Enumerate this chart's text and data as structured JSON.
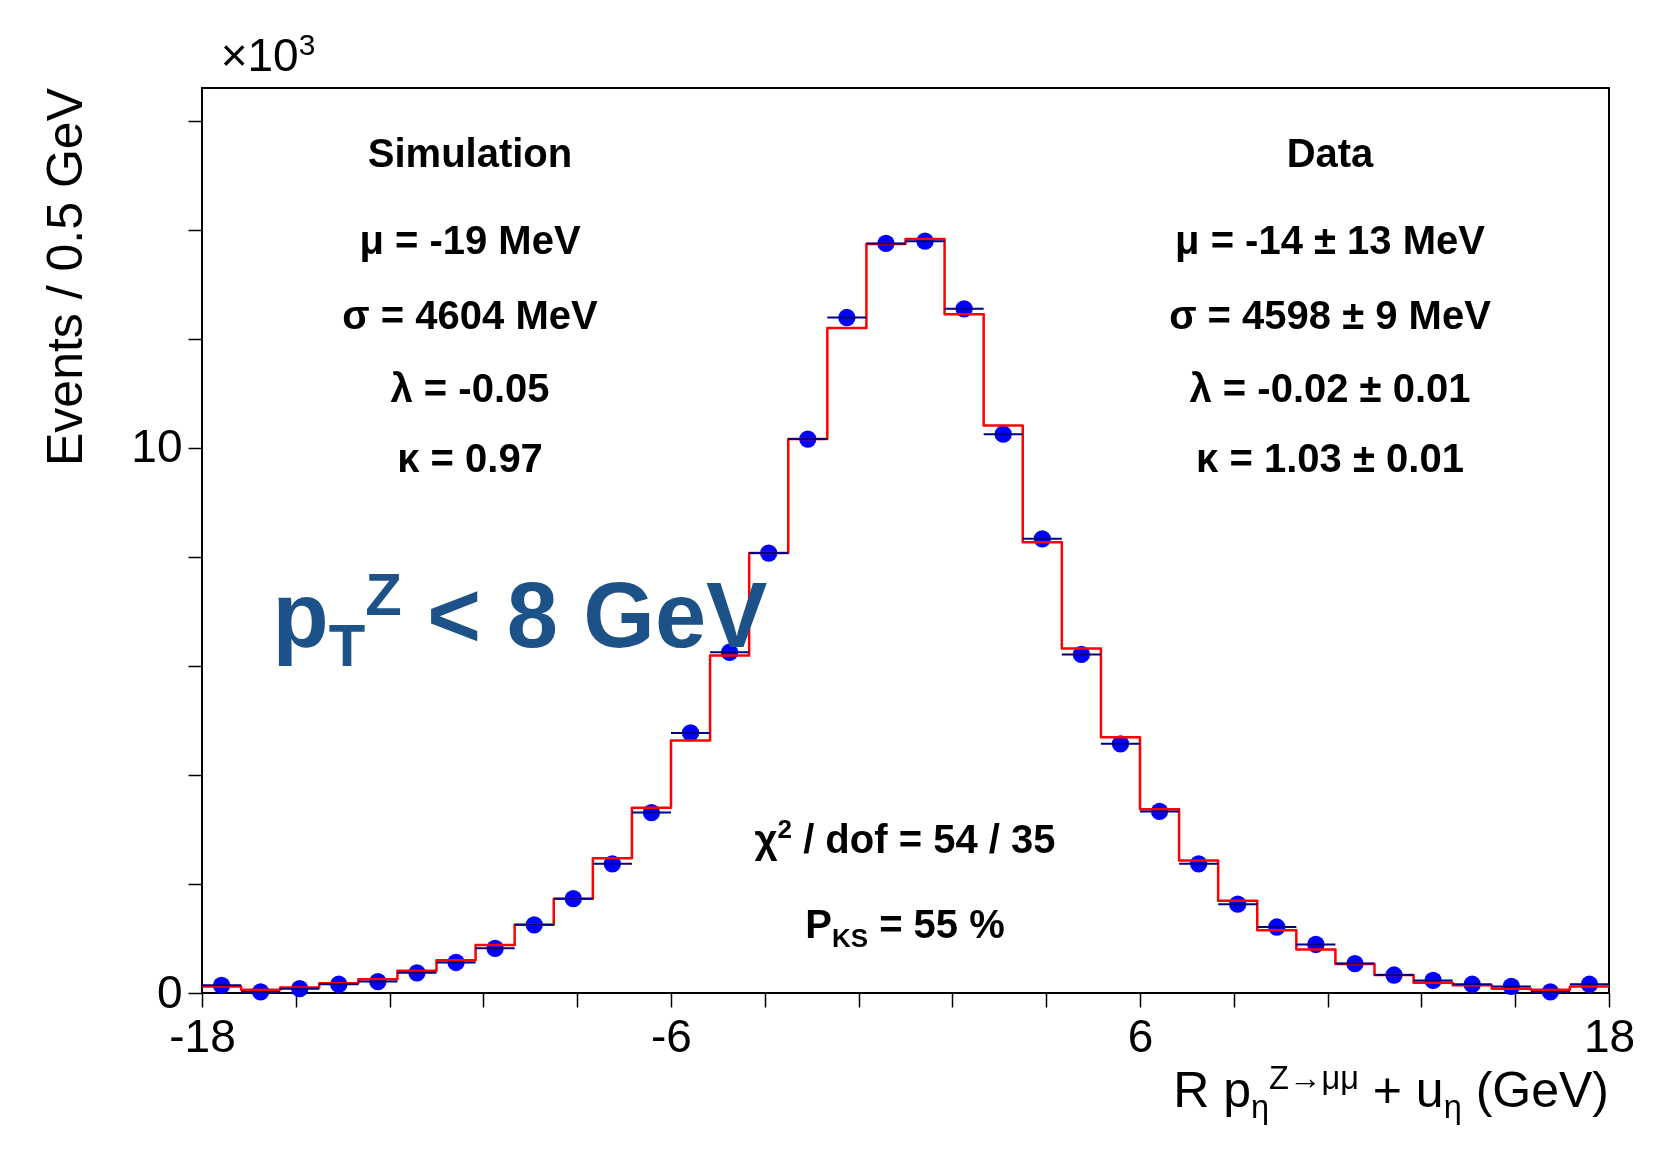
{
  "chart_data": {
    "type": "histogram",
    "xlabel": "R p$_{η}$$^{Z→μμ}$ + u$_{η}$ (GeV)",
    "ylabel": "Events / 0.5 GeV",
    "bins": [
      -18,
      -17,
      -16,
      -15,
      -14,
      -13,
      -12,
      -11,
      -10,
      -9,
      -8,
      -7,
      -6,
      -5,
      -4,
      -3,
      -2,
      -1,
      0,
      1,
      2,
      3,
      4,
      5,
      6,
      7,
      8,
      9,
      10,
      11,
      12,
      13,
      14,
      15,
      16,
      17,
      18
    ],
    "series": [
      {
        "color": "#ff0000",
        "values": [
          0.12,
          0.06,
          0.1,
          0.18,
          0.25,
          0.41,
          0.6,
          0.88,
          1.25,
          1.73,
          2.47,
          3.4,
          4.63,
          6.19,
          8.07,
          10.16,
          12.2,
          13.74,
          13.83,
          12.45,
          10.41,
          8.27,
          6.32,
          4.69,
          3.37,
          2.43,
          1.69,
          1.15,
          0.8,
          0.53,
          0.33,
          0.19,
          0.14,
          0.08,
          0.06,
          0.12
        ]
      },
      {
        "type": "scatter",
        "color": "#0000ff",
        "x": [
          -17.5,
          -16.5,
          -15.5,
          -14.5,
          -13.5,
          -12.5,
          -11.5,
          -10.5,
          -9.5,
          -8.5,
          -7.5,
          -6.5,
          -5.5,
          -4.5,
          -3.5,
          -2.5,
          -1.5,
          -0.5,
          0.5,
          1.5,
          2.5,
          3.5,
          4.5,
          5.5,
          6.5,
          7.5,
          8.5,
          9.5,
          10.5,
          11.5,
          12.5,
          13.5,
          14.5,
          15.5,
          16.5,
          17.5
        ],
        "values": [
          0.14,
          0.02,
          0.08,
          0.16,
          0.21,
          0.37,
          0.56,
          0.82,
          1.25,
          1.73,
          2.37,
          3.31,
          4.77,
          6.25,
          8.07,
          10.16,
          12.39,
          13.75,
          13.79,
          12.55,
          10.25,
          8.33,
          6.21,
          4.57,
          3.33,
          2.37,
          1.63,
          1.21,
          0.89,
          0.54,
          0.33,
          0.23,
          0.16,
          0.12,
          0.02,
          0.16
        ],
        "xerrors": [
          0.5,
          0.5,
          0.5,
          0.5,
          0.5,
          0.5,
          0.5,
          0.5,
          0.5,
          0.5,
          0.5,
          0.5,
          0.5,
          0.5,
          0.5,
          0.5,
          0.5,
          0.5,
          0.5,
          0.5,
          0.5,
          0.5,
          0.5,
          0.5,
          0.5,
          0.5,
          0.5,
          0.5,
          0.5,
          0.5,
          0.5,
          0.5,
          0.5,
          0.5,
          0.5,
          0.5
        ]
      }
    ],
    "marker": "circle",
    "grid": false,
    "xlim": [
      -18,
      18
    ],
    "xticks": [
      -18,
      {
        "value": -15.6,
        "label": null
      },
      {
        "value": -13.2,
        "label": null
      },
      {
        "value": -10.8,
        "label": null
      },
      {
        "value": -8.4,
        "label": null
      },
      -6,
      {
        "value": -3.6,
        "label": null
      },
      {
        "value": -1.2,
        "label": null
      },
      {
        "value": 1.2,
        "label": null
      },
      {
        "value": 3.6,
        "label": null
      },
      6,
      {
        "value": 8.4,
        "label": null
      },
      {
        "value": 10.8,
        "label": null
      },
      {
        "value": 13.2,
        "label": null
      },
      {
        "value": 15.6,
        "label": null
      },
      18
    ],
    "ylim": [
      0,
      16.6
    ],
    "yticks": [
      0,
      {
        "value": 2,
        "label": null
      },
      {
        "value": 4,
        "label": null
      },
      {
        "value": 6,
        "label": null
      },
      {
        "value": 8,
        "label": null
      },
      10,
      {
        "value": 12,
        "label": null
      },
      {
        "value": 14,
        "label": null
      },
      {
        "value": 16,
        "label": null
      }
    ],
    "annotations": [
      "Simulation",
      "μ = -19 MeV",
      "σ = 4604 MeV",
      "λ = -0.05",
      "κ = 0.97",
      "Data",
      "μ = -14 ± 13 MeV",
      "σ = 4598 ± 9 MeV",
      "λ = -0.02 ± 0.01",
      "κ = 1.03 ± 0.01",
      "χ$^{2}$ / dof = 54 / 35",
      "P$_{KS}$ = 55 %",
      "p$_{T}$$^{Z}$ < 8 GeV",
      "×10$^{3}$"
    ]
  }
}
